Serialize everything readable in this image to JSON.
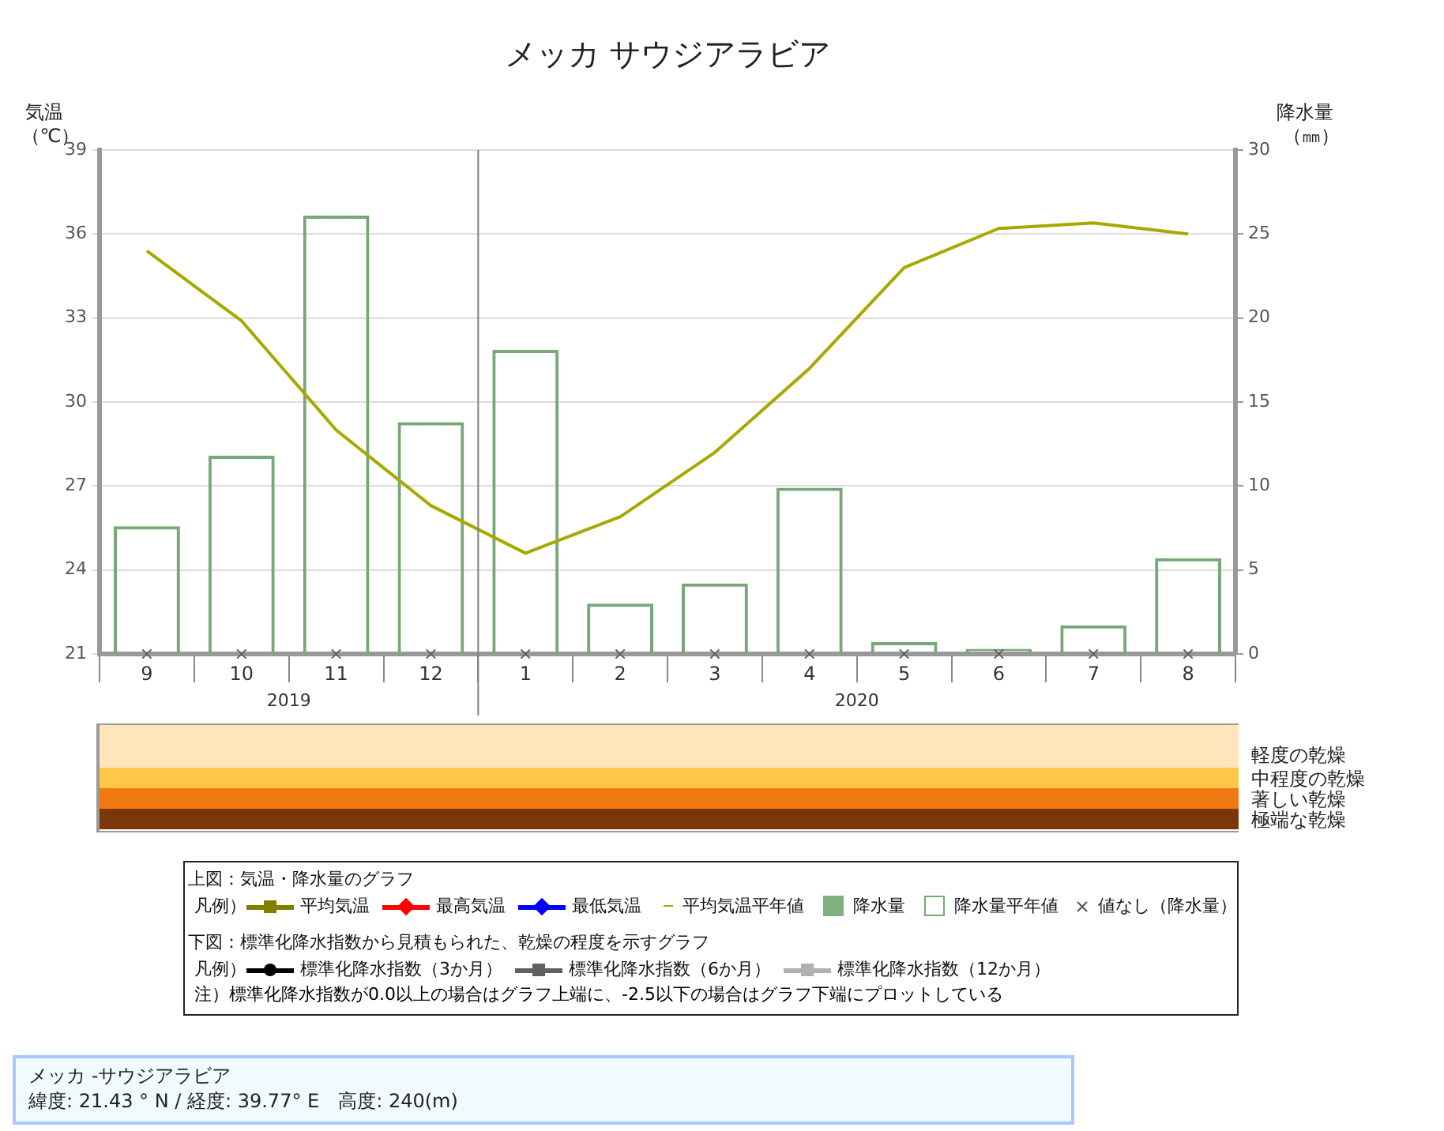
{
  "chart_data": [
    {
      "type": "bar",
      "title": "メッカ サウジアラビア",
      "ylabel": "気温（℃）",
      "y2label": "降水量（㎜）",
      "legend_title": "凡例）",
      "categories": [
        "9",
        "10",
        "11",
        "12",
        "1",
        "2",
        "3",
        "4",
        "5",
        "6",
        "7",
        "8"
      ],
      "ylim": [
        21,
        39
      ],
      "yticks": [
        21,
        24,
        27,
        30,
        33,
        36,
        39
      ],
      "y2lim": [
        0,
        30
      ],
      "y2ticks": [
        0,
        5,
        10,
        15,
        20,
        25,
        30
      ],
      "grid": "y",
      "legend": "bottom",
      "ref_lines": [
        {
          "axis": "x",
          "value": "1",
          "color": "#808080"
        }
      ],
      "annotations": [
        "上図：気温・降水量のグラフ",
        "メッカ -サウジアラビア",
        "緯度: 21.43 ° N / 経度: 39.77° E　高度: 240(m)",
        "2019",
        "2020"
      ],
      "series": [
        {
          "name": "平均気温",
          "type": "line",
          "color": "#808000",
          "marker": "triangle",
          "values": [
            null,
            null,
            null,
            null,
            null,
            null,
            null,
            null,
            null,
            null,
            null,
            null
          ]
        },
        {
          "name": "最高気温",
          "type": "line",
          "color": "#ff0000",
          "marker": "diamond",
          "values": [
            null,
            null,
            null,
            null,
            null,
            null,
            null,
            null,
            null,
            null,
            null,
            null
          ]
        },
        {
          "name": "最低気温",
          "type": "line",
          "color": "#0000ff",
          "marker": "diamond",
          "values": [
            null,
            null,
            null,
            null,
            null,
            null,
            null,
            null,
            null,
            null,
            null,
            null
          ]
        },
        {
          "name": "平均気温平年値",
          "type": "line",
          "color": "#a8a800",
          "values": [
            35.4,
            32.9,
            29.0,
            26.3,
            24.6,
            25.9,
            28.2,
            31.2,
            34.8,
            36.2,
            36.4,
            36.0
          ]
        },
        {
          "name": "降水量",
          "type": "bar",
          "color": "#80b080",
          "axis": "y2",
          "values": [
            null,
            null,
            null,
            null,
            null,
            null,
            null,
            null,
            null,
            null,
            null,
            null
          ]
        },
        {
          "name": "降水量平年値",
          "type": "bar",
          "color": "#78a878",
          "axis": "y2",
          "values": [
            7.6,
            11.8,
            26.1,
            13.8,
            18.1,
            3.0,
            4.2,
            9.9,
            0.7,
            0.3,
            1.7,
            5.7
          ]
        },
        {
          "name": "値なし（降水量）",
          "type": "scatter",
          "color": "#606060",
          "marker": "cross",
          "axis": "y2",
          "values": [
            0,
            0,
            0,
            0,
            0,
            0,
            0,
            0,
            0,
            0,
            0,
            0
          ]
        }
      ]
    },
    {
      "type": "other",
      "legend": "bottom",
      "legend_title": "凡例）",
      "annotations": [
        "下図：標準化降水指数から見積もられた、乾燥の程度を示すグラフ",
        "注）標準化降水指数が0.0以上の場合はグラフ上端に、-2.5以下の場合はグラフ下端にプロットしている",
        "軽度の乾燥",
        "中程度の乾燥",
        "著しい乾燥",
        "極端な乾燥"
      ],
      "series": [
        {
          "name": "標準化降水指数（3か月）",
          "type": "line",
          "color": "#000000",
          "marker": "circle"
        },
        {
          "name": "標準化降水指数（6か月）",
          "type": "line",
          "color": "#606060",
          "marker": "square"
        },
        {
          "name": "標準化降水指数（12か月）",
          "type": "line",
          "color": "#b0b0b0",
          "marker": "triangle"
        }
      ]
    }
  ]
}
